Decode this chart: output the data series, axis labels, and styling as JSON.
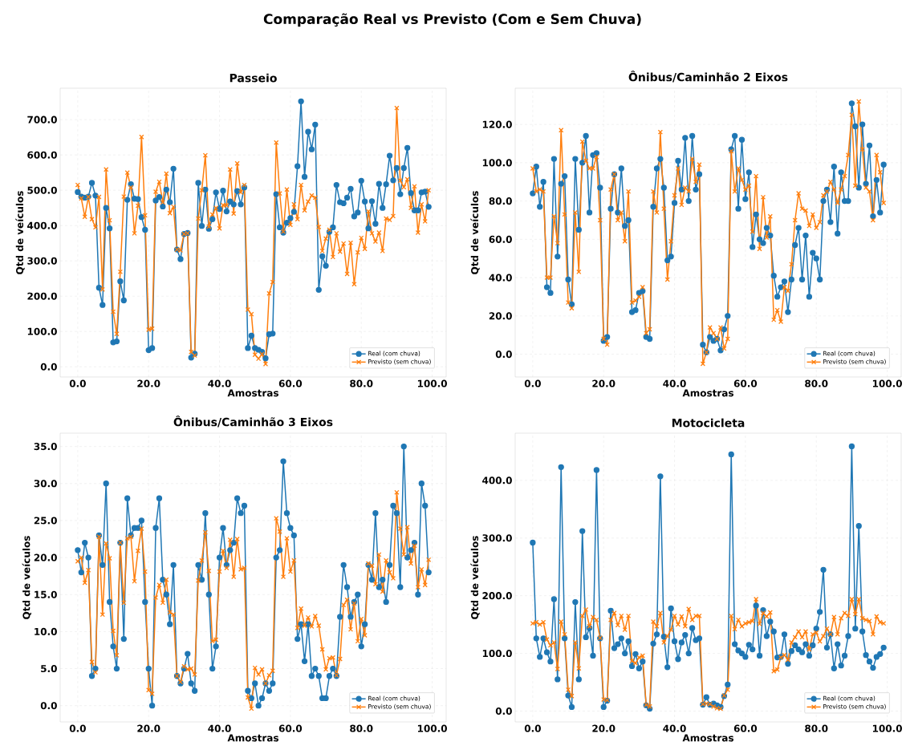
{
  "chart_data": [
    {
      "type": "line",
      "title": "Passeio",
      "xlabel": "Amostras",
      "ylabel": "Qtd de veículos",
      "annotations": [
        "Comparação Real vs Previsto (Com e Sem Chuva)"
      ],
      "grid": true,
      "legend": "bottom right",
      "line_style": "solid",
      "xlim": [
        -4.95,
        103.95
      ],
      "ylim": [
        -29,
        789
      ],
      "xticks": [
        {
          "value": 0,
          "label": "0.0"
        },
        {
          "value": 20,
          "label": "20.0"
        },
        {
          "value": 40,
          "label": "40.0"
        },
        {
          "value": 60,
          "label": "60.0"
        },
        {
          "value": 80,
          "label": "80.0"
        },
        {
          "value": 100,
          "label": "100.0"
        }
      ],
      "yticks": [
        {
          "value": 0,
          "label": "0.0"
        },
        {
          "value": 100,
          "label": "100.0"
        },
        {
          "value": 200,
          "label": "200.0"
        },
        {
          "value": 300,
          "label": "300.0"
        },
        {
          "value": 400,
          "label": "400.0"
        },
        {
          "value": 500,
          "label": "500.0"
        },
        {
          "value": 600,
          "label": "600.0"
        },
        {
          "value": 700,
          "label": "700.0"
        }
      ],
      "x": [
        0,
        1,
        2,
        3,
        4,
        5,
        6,
        7,
        8,
        9,
        10,
        11,
        12,
        13,
        14,
        15,
        16,
        17,
        18,
        19,
        20,
        21,
        22,
        23,
        24,
        25,
        26,
        27,
        28,
        29,
        30,
        31,
        32,
        33,
        34,
        35,
        36,
        37,
        38,
        39,
        40,
        41,
        42,
        43,
        44,
        45,
        46,
        47,
        48,
        49,
        50,
        51,
        52,
        53,
        54,
        55,
        56,
        57,
        58,
        59,
        60,
        61,
        62,
        63,
        64,
        65,
        66,
        67,
        68,
        69,
        70,
        71,
        72,
        73,
        74,
        75,
        76,
        77,
        78,
        79,
        80,
        81,
        82,
        83,
        84,
        85,
        86,
        87,
        88,
        89,
        90,
        91,
        92,
        93,
        94,
        95,
        96,
        97,
        98,
        99
      ],
      "series": [
        {
          "name": "Real (com chuva)",
          "color": "#1f77b4",
          "marker": "circle",
          "values": [
            495,
            482,
            479,
            482,
            521,
            485,
            224,
            175,
            450,
            392,
            69,
            72,
            242,
            188,
            473,
            517,
            476,
            475,
            424,
            388,
            47,
            53,
            471,
            481,
            454,
            502,
            466,
            561,
            332,
            305,
            376,
            379,
            26,
            37,
            521,
            399,
            502,
            391,
            418,
            494,
            447,
            499,
            440,
            468,
            460,
            498,
            460,
            508,
            53,
            88,
            53,
            48,
            42,
            24,
            92,
            94,
            489,
            395,
            380,
            408,
            421,
            439,
            568,
            752,
            538,
            666,
            616,
            686,
            218,
            313,
            286,
            382,
            395,
            515,
            466,
            463,
            479,
            504,
            426,
            437,
            527,
            468,
            392,
            469,
            405,
            518,
            450,
            517,
            598,
            528,
            563,
            489,
            563,
            620,
            492,
            443,
            443,
            494,
            496,
            453
          ]
        },
        {
          "name": "Previsto (sem chuva)",
          "color": "#ff7f0e",
          "marker": "cross",
          "values": [
            515,
            477,
            425,
            481,
            418,
            395,
            481,
            219,
            559,
            415,
            156,
            93,
            269,
            482,
            550,
            508,
            378,
            456,
            651,
            429,
            105,
            108,
            496,
            524,
            466,
            547,
            435,
            453,
            332,
            330,
            376,
            378,
            42,
            32,
            420,
            500,
            599,
            397,
            431,
            450,
            392,
            458,
            457,
            559,
            434,
            576,
            494,
            515,
            162,
            149,
            34,
            23,
            36,
            8,
            208,
            240,
            635,
            491,
            383,
            502,
            402,
            460,
            418,
            515,
            443,
            468,
            485,
            479,
            396,
            328,
            363,
            388,
            311,
            378,
            326,
            349,
            263,
            351,
            234,
            324,
            365,
            334,
            440,
            378,
            355,
            380,
            328,
            420,
            416,
            427,
            733,
            527,
            509,
            531,
            450,
            511,
            380,
            460,
            412,
            500
          ]
        }
      ]
    },
    {
      "type": "line",
      "title": "Ônibus/Caminhão 2 Eixos",
      "xlabel": "Amostras",
      "ylabel": "Qtd de veículos",
      "grid": true,
      "legend": "bottom right",
      "line_style": "solid",
      "xlim": [
        -4.95,
        103.95
      ],
      "ylim": [
        -11.9,
        138.9
      ],
      "xticks": [
        {
          "value": 0,
          "label": "0.0"
        },
        {
          "value": 20,
          "label": "20.0"
        },
        {
          "value": 40,
          "label": "40.0"
        },
        {
          "value": 60,
          "label": "60.0"
        },
        {
          "value": 80,
          "label": "80.0"
        },
        {
          "value": 100,
          "label": "100.0"
        }
      ],
      "yticks": [
        {
          "value": 0,
          "label": "0.0"
        },
        {
          "value": 20,
          "label": "20.0"
        },
        {
          "value": 40,
          "label": "40.0"
        },
        {
          "value": 60,
          "label": "60.0"
        },
        {
          "value": 80,
          "label": "80.0"
        },
        {
          "value": 100,
          "label": "100.0"
        },
        {
          "value": 120,
          "label": "120.0"
        }
      ],
      "x": [
        0,
        1,
        2,
        3,
        4,
        5,
        6,
        7,
        8,
        9,
        10,
        11,
        12,
        13,
        14,
        15,
        16,
        17,
        18,
        19,
        20,
        21,
        22,
        23,
        24,
        25,
        26,
        27,
        28,
        29,
        30,
        31,
        32,
        33,
        34,
        35,
        36,
        37,
        38,
        39,
        40,
        41,
        42,
        43,
        44,
        45,
        46,
        47,
        48,
        49,
        50,
        51,
        52,
        53,
        54,
        55,
        56,
        57,
        58,
        59,
        60,
        61,
        62,
        63,
        64,
        65,
        66,
        67,
        68,
        69,
        70,
        71,
        72,
        73,
        74,
        75,
        76,
        77,
        78,
        79,
        80,
        81,
        82,
        83,
        84,
        85,
        86,
        87,
        88,
        89,
        90,
        91,
        92,
        93,
        94,
        95,
        96,
        97,
        98,
        99
      ],
      "series": [
        {
          "name": "Real (com chuva)",
          "color": "#1f77b4",
          "marker": "circle",
          "values": [
            84,
            98,
            77,
            90,
            35,
            32,
            102,
            51,
            89,
            93,
            39,
            26,
            102,
            65,
            100,
            114,
            74,
            104,
            105,
            87,
            7,
            9,
            76,
            94,
            74,
            97,
            67,
            70,
            22,
            23,
            32,
            33,
            9,
            8,
            77,
            97,
            102,
            87,
            49,
            51,
            79,
            101,
            86,
            113,
            80,
            114,
            86,
            94,
            5,
            1,
            9,
            7,
            8,
            2,
            13,
            20,
            107,
            114,
            76,
            112,
            81,
            95,
            56,
            73,
            60,
            58,
            66,
            62,
            41,
            30,
            35,
            38,
            22,
            39,
            57,
            66,
            39,
            62,
            30,
            53,
            50,
            39,
            80,
            86,
            69,
            98,
            63,
            95,
            80,
            80,
            131,
            119,
            87,
            120,
            89,
            109,
            72,
            91,
            74,
            99
          ]
        },
        {
          "name": "Previsto (sem chuva)",
          "color": "#ff7f0e",
          "marker": "cross",
          "values": [
            97,
            85,
            86,
            85,
            40,
            40,
            72,
            58,
            117,
            73,
            27,
            24,
            74,
            43,
            111,
            101,
            97,
            97,
            103,
            70,
            8,
            5,
            86,
            94,
            70,
            74,
            59,
            85,
            27,
            28,
            30,
            35,
            11,
            13,
            85,
            74,
            116,
            76,
            39,
            59,
            83,
            97,
            78,
            87,
            85,
            102,
            90,
            99,
            -5,
            1,
            14,
            11,
            8,
            14,
            3,
            8,
            106,
            85,
            97,
            91,
            86,
            88,
            64,
            93,
            55,
            82,
            61,
            72,
            18,
            23,
            17,
            35,
            33,
            47,
            70,
            84,
            76,
            75,
            67,
            73,
            66,
            69,
            83,
            85,
            90,
            86,
            79,
            86,
            93,
            104,
            125,
            88,
            132,
            107,
            87,
            85,
            70,
            104,
            95,
            79
          ]
        }
      ]
    },
    {
      "type": "line",
      "title": "Ônibus/Caminhão 3 Eixos",
      "xlabel": "Amostras",
      "ylabel": "Qtd de veículos",
      "grid": true,
      "legend": "bottom right",
      "line_style": "solid",
      "xlim": [
        -4.95,
        103.95
      ],
      "ylim": [
        -2.2,
        36.8
      ],
      "xticks": [
        {
          "value": 0,
          "label": "0.0"
        },
        {
          "value": 20,
          "label": "20.0"
        },
        {
          "value": 40,
          "label": "40.0"
        },
        {
          "value": 60,
          "label": "60.0"
        },
        {
          "value": 80,
          "label": "80.0"
        },
        {
          "value": 100,
          "label": "100.0"
        }
      ],
      "yticks": [
        {
          "value": 0,
          "label": "0.0"
        },
        {
          "value": 5,
          "label": "5.0"
        },
        {
          "value": 10,
          "label": "10.0"
        },
        {
          "value": 15,
          "label": "15.0"
        },
        {
          "value": 20,
          "label": "20.0"
        },
        {
          "value": 25,
          "label": "25.0"
        },
        {
          "value": 30,
          "label": "30.0"
        },
        {
          "value": 35,
          "label": "35.0"
        }
      ],
      "x": [
        0,
        1,
        2,
        3,
        4,
        5,
        6,
        7,
        8,
        9,
        10,
        11,
        12,
        13,
        14,
        15,
        16,
        17,
        18,
        19,
        20,
        21,
        22,
        23,
        24,
        25,
        26,
        27,
        28,
        29,
        30,
        31,
        32,
        33,
        34,
        35,
        36,
        37,
        38,
        39,
        40,
        41,
        42,
        43,
        44,
        45,
        46,
        47,
        48,
        49,
        50,
        51,
        52,
        53,
        54,
        55,
        56,
        57,
        58,
        59,
        60,
        61,
        62,
        63,
        64,
        65,
        66,
        67,
        68,
        69,
        70,
        71,
        72,
        73,
        74,
        75,
        76,
        77,
        78,
        79,
        80,
        81,
        82,
        83,
        84,
        85,
        86,
        87,
        88,
        89,
        90,
        91,
        92,
        93,
        94,
        95,
        96,
        97,
        98,
        99
      ],
      "series": [
        {
          "name": "Real (com chuva)",
          "color": "#1f77b4",
          "marker": "circle",
          "values": [
            21,
            18,
            22,
            20,
            4,
            5,
            23,
            19,
            30,
            14,
            8,
            5,
            22,
            9,
            28,
            23,
            24,
            24,
            25,
            14,
            5,
            0,
            24,
            28,
            17,
            15,
            11,
            19,
            4,
            3,
            5,
            7,
            3,
            2,
            19,
            17,
            26,
            15,
            5,
            8,
            20,
            24,
            19,
            21,
            22,
            28,
            26,
            27,
            2,
            1,
            3,
            0,
            1,
            3,
            2,
            3,
            20,
            21,
            33,
            26,
            24,
            23,
            9,
            11,
            6,
            11,
            4,
            5,
            4,
            1,
            1,
            4,
            5,
            4,
            12,
            19,
            16,
            12,
            14,
            15,
            8,
            11,
            19,
            17,
            26,
            16,
            17,
            14,
            19,
            27,
            26,
            16,
            35,
            20,
            21,
            22,
            15,
            30,
            27,
            18
          ]
        },
        {
          "name": "Previsto (sem chuva)",
          "color": "#ff7f0e",
          "marker": "cross",
          "values": [
            19.5,
            20.0,
            16.6,
            18.3,
            5.9,
            4.5,
            22.8,
            12.3,
            21.9,
            19.9,
            10.1,
            6.8,
            22.0,
            13.9,
            22.6,
            22.8,
            16.8,
            20.9,
            23.9,
            18.1,
            2.1,
            1.6,
            14.6,
            16.3,
            13.9,
            17.0,
            12.6,
            12.3,
            4.0,
            3.2,
            5.3,
            4.9,
            5.0,
            4.2,
            16.9,
            19.6,
            23.4,
            18.2,
            8.7,
            8.9,
            18.1,
            20.9,
            18.6,
            22.4,
            17.4,
            22.5,
            18.4,
            18.6,
            1.1,
            -0.4,
            5.1,
            4.2,
            4.9,
            3.0,
            4.1,
            4.7,
            25.3,
            23.5,
            17.4,
            22.6,
            18.1,
            19.6,
            10.5,
            13.1,
            10.8,
            11.9,
            10.7,
            12.1,
            10.8,
            7.6,
            4.9,
            6.4,
            6.5,
            4.1,
            6.3,
            13.6,
            14.3,
            10.3,
            13.8,
            8.7,
            11.7,
            9.5,
            19.2,
            18.9,
            16.4,
            20.4,
            15.4,
            19.6,
            18.0,
            17.2,
            28.8,
            23.9,
            20.4,
            24.1,
            19.2,
            21.6,
            16.0,
            18.4,
            16.3,
            19.7
          ]
        }
      ]
    },
    {
      "type": "line",
      "title": "Motocicleta",
      "xlabel": "Amostras",
      "ylabel": "Qtd de veículos",
      "grid": true,
      "legend": "bottom right",
      "line_style": "solid",
      "xlim": [
        -4.95,
        103.95
      ],
      "ylim": [
        -18.8,
        481.8
      ],
      "xticks": [
        {
          "value": 0,
          "label": "0.0"
        },
        {
          "value": 20,
          "label": "20.0"
        },
        {
          "value": 40,
          "label": "40.0"
        },
        {
          "value": 60,
          "label": "60.0"
        },
        {
          "value": 80,
          "label": "80.0"
        },
        {
          "value": 100,
          "label": "100.0"
        }
      ],
      "yticks": [
        {
          "value": 0,
          "label": "0.0"
        },
        {
          "value": 100,
          "label": "100.0"
        },
        {
          "value": 200,
          "label": "200.0"
        },
        {
          "value": 300,
          "label": "300.0"
        },
        {
          "value": 400,
          "label": "400.0"
        }
      ],
      "x": [
        0,
        1,
        2,
        3,
        4,
        5,
        6,
        7,
        8,
        9,
        10,
        11,
        12,
        13,
        14,
        15,
        16,
        17,
        18,
        19,
        20,
        21,
        22,
        23,
        24,
        25,
        26,
        27,
        28,
        29,
        30,
        31,
        32,
        33,
        34,
        35,
        36,
        37,
        38,
        39,
        40,
        41,
        42,
        43,
        44,
        45,
        46,
        47,
        48,
        49,
        50,
        51,
        52,
        53,
        54,
        55,
        56,
        57,
        58,
        59,
        60,
        61,
        62,
        63,
        64,
        65,
        66,
        67,
        68,
        69,
        70,
        71,
        72,
        73,
        74,
        75,
        76,
        77,
        78,
        79,
        80,
        81,
        82,
        83,
        84,
        85,
        86,
        87,
        88,
        89,
        90,
        91,
        92,
        93,
        94,
        95,
        96,
        97,
        98,
        99
      ],
      "series": [
        {
          "name": "Real (com chuva)",
          "color": "#1f77b4",
          "marker": "circle",
          "values": [
            292,
            126,
            94,
            126,
            102,
            86,
            194,
            55,
            423,
            126,
            27,
            7,
            189,
            55,
            312,
            128,
            144,
            96,
            418,
            126,
            7,
            18,
            174,
            109,
            116,
            126,
            100,
            121,
            78,
            99,
            74,
            86,
            10,
            4,
            117,
            133,
            407,
            129,
            76,
            178,
            121,
            90,
            119,
            132,
            100,
            144,
            123,
            126,
            11,
            24,
            11,
            13,
            10,
            7,
            26,
            46,
            445,
            116,
            105,
            100,
            94,
            115,
            107,
            183,
            96,
            175,
            130,
            155,
            138,
            93,
            94,
            133,
            82,
            104,
            114,
            107,
            102,
            116,
            96,
            114,
            143,
            172,
            245,
            110,
            133,
            74,
            116,
            79,
            96,
            130,
            459,
            143,
            321,
            138,
            97,
            86,
            75,
            94,
            99,
            110
          ]
        },
        {
          "name": "Previsto (sem chuva)",
          "color": "#ff7f0e",
          "marker": "cross",
          "values": [
            152,
            154,
            150,
            154,
            124,
            114,
            119,
            73,
            155,
            133,
            37,
            26,
            119,
            74,
            165,
            176,
            147,
            163,
            158,
            127,
            20,
            19,
            158,
            170,
            149,
            165,
            141,
            165,
            87,
            83,
            93,
            96,
            11,
            8,
            155,
            147,
            170,
            119,
            130,
            141,
            165,
            150,
            164,
            147,
            177,
            158,
            165,
            165,
            12,
            13,
            12,
            8,
            5,
            4,
            27,
            37,
            165,
            142,
            158,
            147,
            152,
            154,
            156,
            194,
            151,
            170,
            164,
            171,
            69,
            72,
            93,
            97,
            89,
            119,
            128,
            138,
            128,
            138,
            107,
            133,
            136,
            121,
            130,
            143,
            133,
            163,
            133,
            161,
            170,
            165,
            194,
            168,
            194,
            161,
            158,
            156,
            133,
            164,
            154,
            152
          ]
        }
      ]
    }
  ]
}
